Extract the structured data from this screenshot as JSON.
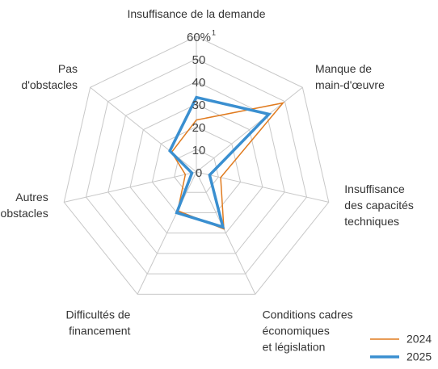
{
  "chart_data": {
    "type": "radar",
    "categories": [
      "Insuffisance de la demande",
      "Manque de\nmain-d'œuvre",
      "Insuffisance\ndes capacités\ntechniques",
      "Conditions cadres\néconomiques\net législation",
      "Difficultés de\nfinancement",
      "Autres\nobstacles",
      "Pas\nd'obstacles"
    ],
    "series": [
      {
        "name": "2024",
        "color": "#e07b1f",
        "values": [
          23,
          49,
          11,
          28,
          19,
          5,
          14
        ]
      },
      {
        "name": "2025",
        "color": "#3a8fd0",
        "values": [
          33,
          41,
          6,
          27,
          20,
          2,
          15
        ]
      }
    ],
    "ylim": [
      0,
      60
    ],
    "yticks": [
      0,
      10,
      20,
      30,
      40,
      50,
      {
        "value": 60,
        "label": "60%"
      }
    ],
    "footnote_marker": "1",
    "grid": true,
    "legend": "bottom-right"
  }
}
